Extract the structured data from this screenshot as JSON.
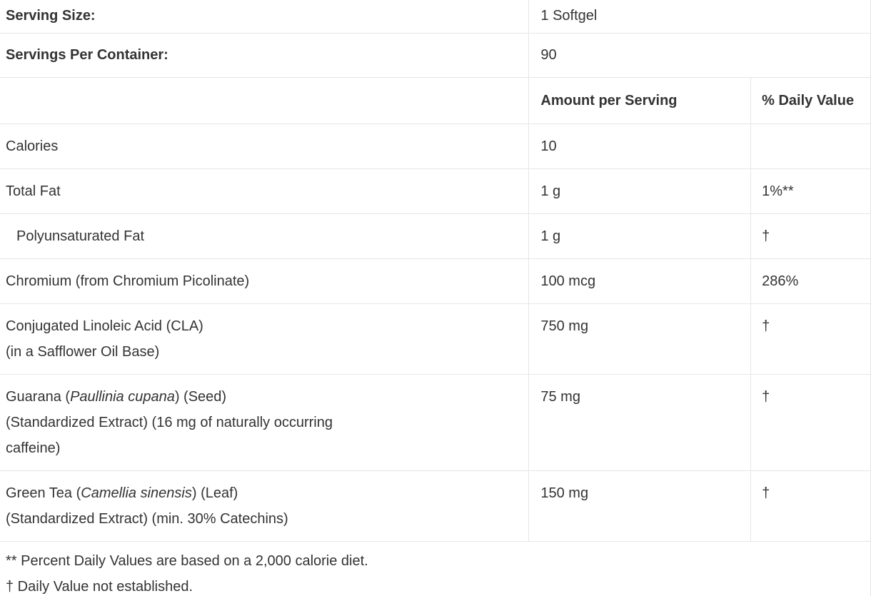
{
  "theme": {
    "background": "#ffffff",
    "text_color": "#333333",
    "border_color": "#e6e6e6"
  },
  "serving_info": [
    {
      "label": "Serving Size:",
      "value": "1 Softgel"
    },
    {
      "label": "Servings Per Container:",
      "value": "90"
    }
  ],
  "columns": {
    "ingredient": "",
    "amount": "Amount per Serving",
    "daily_value": "% Daily Value"
  },
  "rows": [
    {
      "name_lines": [
        [
          {
            "text": "Calories"
          }
        ]
      ],
      "amount": "10",
      "daily_value": "",
      "indent": false
    },
    {
      "name_lines": [
        [
          {
            "text": "Total Fat"
          }
        ]
      ],
      "amount": "1 g",
      "daily_value": "1%**",
      "indent": false
    },
    {
      "name_lines": [
        [
          {
            "text": "Polyunsaturated Fat"
          }
        ]
      ],
      "amount": "1 g",
      "daily_value": "†",
      "indent": true
    },
    {
      "name_lines": [
        [
          {
            "text": "Chromium (from Chromium Picolinate)"
          }
        ]
      ],
      "amount": "100 mcg",
      "daily_value": "286%",
      "indent": false
    },
    {
      "name_lines": [
        [
          {
            "text": "Conjugated Linoleic Acid (CLA)"
          }
        ],
        [
          {
            "text": "(in a Safflower Oil Base)"
          }
        ]
      ],
      "amount": "750 mg",
      "daily_value": "†",
      "indent": false
    },
    {
      "name_lines": [
        [
          {
            "text": "Guarana ("
          },
          {
            "text": "Paullinia cupana",
            "italic": true
          },
          {
            "text": ") (Seed)"
          }
        ],
        [
          {
            "text": "(Standardized Extract) (16 mg of naturally occurring"
          }
        ],
        [
          {
            "text": "caffeine)"
          }
        ]
      ],
      "amount": "75 mg",
      "daily_value": "†",
      "indent": false
    },
    {
      "name_lines": [
        [
          {
            "text": "Green Tea ("
          },
          {
            "text": "Camellia sinensis",
            "italic": true
          },
          {
            "text": ") (Leaf)"
          }
        ],
        [
          {
            "text": "(Standardized Extract) (min. 30% Catechins)"
          }
        ]
      ],
      "amount": "150 mg",
      "daily_value": "†",
      "indent": false
    }
  ],
  "footnotes": [
    "** Percent Daily Values are based on a 2,000 calorie diet.",
    "† Daily Value not established."
  ]
}
